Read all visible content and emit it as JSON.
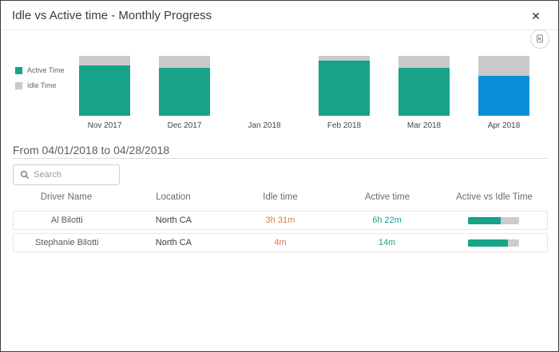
{
  "dialog": {
    "title": "Idle vs Active time - Monthly Progress",
    "close_glyph": "✕"
  },
  "colors": {
    "active": "#17A388",
    "idle": "#C9C9C9",
    "selected": "#0A90DB",
    "idle_text": "#E1764F",
    "active_text": "#1D9F88"
  },
  "chart_data": {
    "type": "bar",
    "stacked": true,
    "categories": [
      "Nov 2017",
      "Dec 2017",
      "Jan 2018",
      "Feb 2018",
      "Mar 2018",
      "Apr 2018"
    ],
    "series": [
      {
        "name": "Active Time",
        "values_pct": [
          84,
          80,
          0,
          92,
          80,
          67
        ]
      },
      {
        "name": "Idle Time",
        "values_pct": [
          16,
          20,
          0,
          8,
          20,
          33
        ]
      }
    ],
    "selected_category": "Apr 2018",
    "legend": [
      "Active Time",
      "Idle Time"
    ],
    "legend_position": "left",
    "ylabel": "",
    "xlabel": ""
  },
  "period": {
    "label": "From 04/01/2018 to 04/28/2018"
  },
  "search": {
    "placeholder": "Search"
  },
  "table": {
    "columns": [
      "Driver Name",
      "Location",
      "Idle time",
      "Active time",
      "Active vs Idle Time"
    ],
    "rows": [
      {
        "driver": "Al Bilotti",
        "location": "North CA",
        "idle": "3h 31m",
        "active": "6h 22m",
        "active_pct": 64
      },
      {
        "driver": "Stephanie Bilotti",
        "location": "North CA",
        "idle": "4m",
        "active": "14m",
        "active_pct": 78
      }
    ]
  }
}
